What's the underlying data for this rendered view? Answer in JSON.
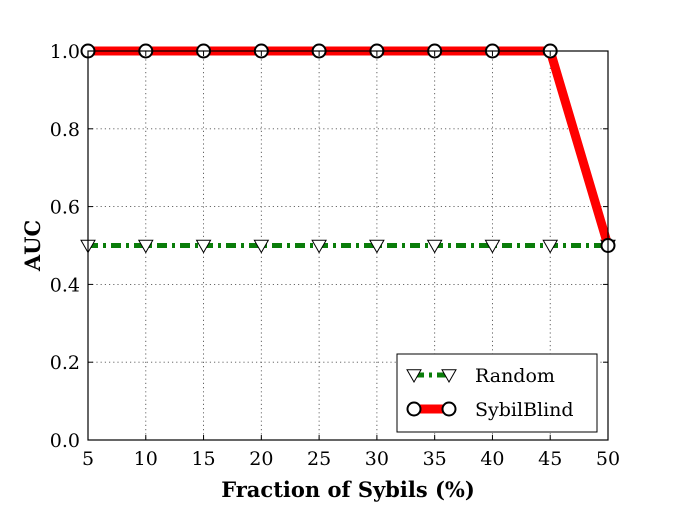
{
  "chart_data": {
    "type": "line",
    "xlabel": "Fraction of Sybils (%)",
    "ylabel": "AUC",
    "x": [
      5,
      10,
      15,
      20,
      25,
      30,
      35,
      40,
      45,
      50
    ],
    "xlim": [
      5,
      50
    ],
    "ylim": [
      0.0,
      1.0
    ],
    "x_ticks": [
      "5",
      "10",
      "15",
      "20",
      "25",
      "30",
      "35",
      "40",
      "45",
      "50"
    ],
    "y_ticks": [
      "0.0",
      "0.2",
      "0.4",
      "0.6",
      "0.8",
      "1.0"
    ],
    "grid": true,
    "legend_position": "bottom-right",
    "series": [
      {
        "name": "Random",
        "values": [
          0.5,
          0.5,
          0.5,
          0.5,
          0.5,
          0.5,
          0.5,
          0.5,
          0.5,
          0.5
        ],
        "color": "#0a7d0a",
        "line_style": "dash-dot",
        "marker": "down-triangle"
      },
      {
        "name": "SybilBlind",
        "values": [
          1.0,
          1.0,
          1.0,
          1.0,
          1.0,
          1.0,
          1.0,
          1.0,
          1.0,
          0.5
        ],
        "color": "#ff0000",
        "line_style": "solid",
        "marker": "circle"
      }
    ]
  }
}
